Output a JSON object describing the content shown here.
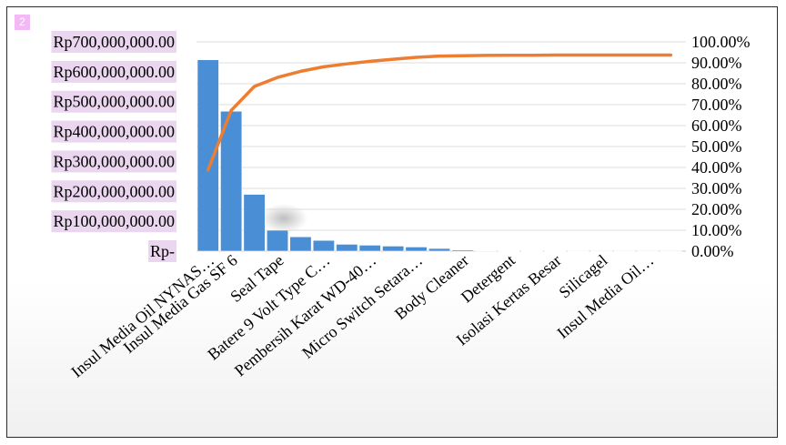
{
  "badge": "2",
  "chart_data": {
    "type": "pareto",
    "categories": [
      "Insul Media Oil NYNAS…",
      "Insul Media Gas SF 6",
      "",
      "Seal Tape",
      "",
      "Batere 9 Volt Type C…",
      "",
      "Pembersih Karat WD-40…",
      "",
      "Micro Switch Setara…",
      "",
      "Body Cleaner",
      "",
      "Detergent",
      "",
      "Isolasi Kertas Besar",
      "",
      "Silicagel",
      "",
      "Insul Media Oil…",
      ""
    ],
    "series": [
      {
        "type": "bar",
        "axis": "left",
        "color": "#4a8fd6",
        "values": [
          640000000,
          468000000,
          190000000,
          70000000,
          48000000,
          36000000,
          23000000,
          20000000,
          17000000,
          14000000,
          9000000,
          4000000,
          1500000,
          1000000,
          800000,
          600000,
          400000,
          300000,
          200000,
          150000,
          100000
        ]
      },
      {
        "type": "line",
        "axis": "right",
        "color": "#ed7d31",
        "values": [
          38.8,
          67.2,
          78.7,
          83.0,
          85.9,
          88.1,
          89.5,
          90.7,
          91.7,
          92.6,
          93.2,
          93.4,
          93.5,
          93.6,
          93.6,
          93.7,
          93.7,
          93.7,
          93.7,
          93.7,
          93.7
        ]
      }
    ],
    "y_left": {
      "ylim": [
        0,
        700000000
      ],
      "tick_labels": [
        "Rp-",
        "Rp100,000,000.00",
        "Rp200,000,000.00",
        "Rp300,000,000.00",
        "Rp400,000,000.00",
        "Rp500,000,000.00",
        "Rp600,000,000.00",
        "Rp700,000,000.00"
      ]
    },
    "y_right": {
      "ylim": [
        0,
        100
      ],
      "tick_labels": [
        "0.00%",
        "10.00%",
        "20.00%",
        "30.00%",
        "40.00%",
        "50.00%",
        "60.00%",
        "70.00%",
        "80.00%",
        "90.00%",
        "100.00%"
      ]
    },
    "grid": true,
    "legend": "none"
  }
}
